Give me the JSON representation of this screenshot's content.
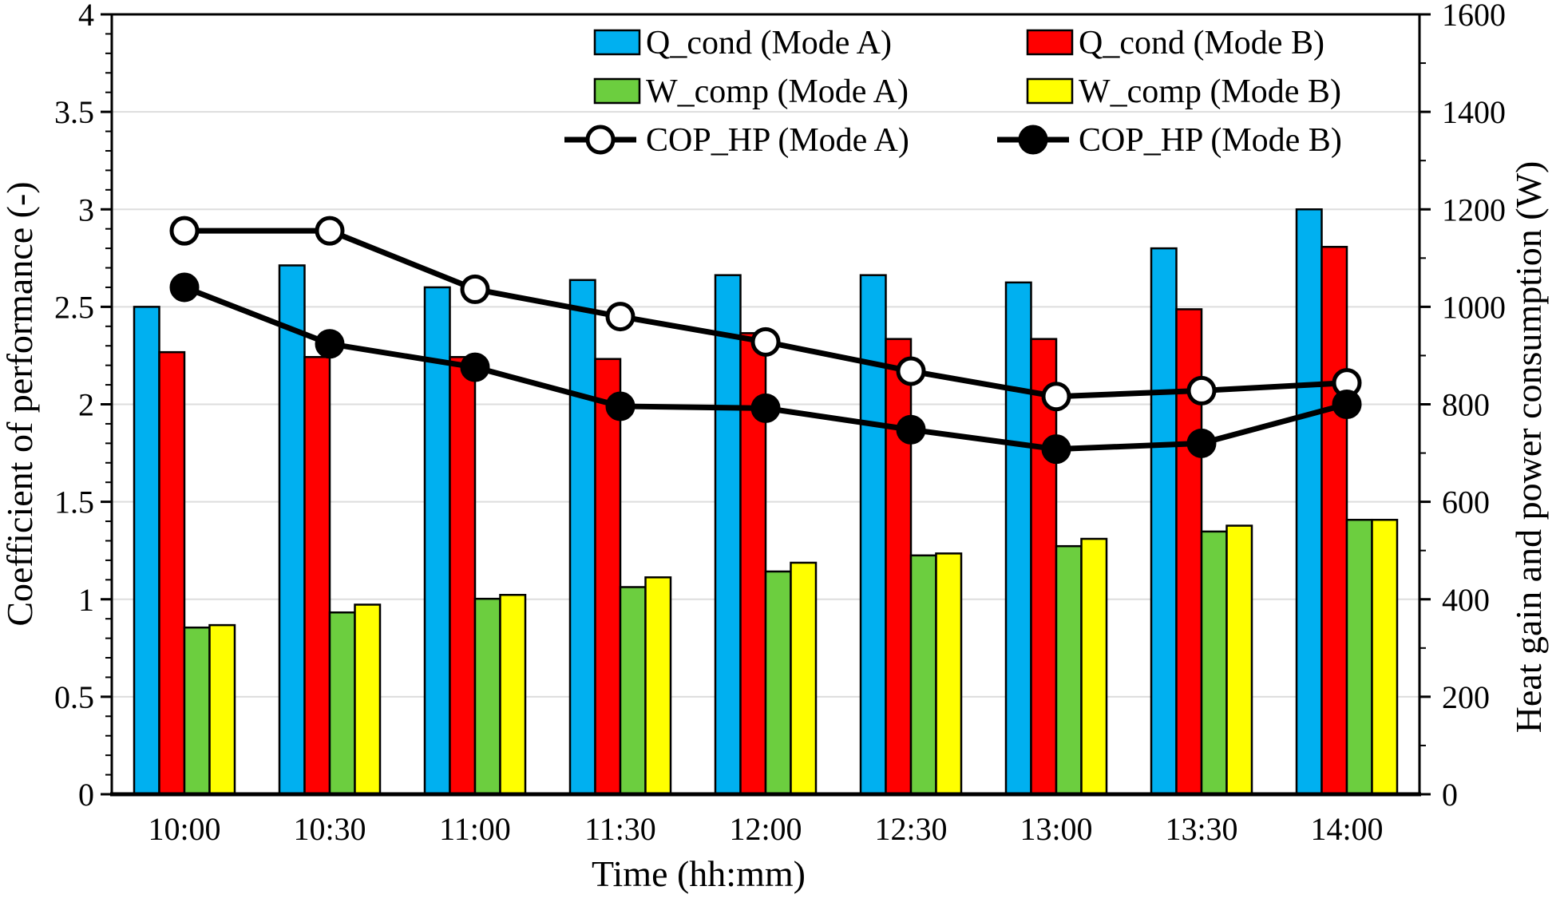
{
  "chart_data": {
    "type": "bar+line combo (dual axis)",
    "categories": [
      "10:00",
      "10:30",
      "11:00",
      "11:30",
      "12:00",
      "12:30",
      "13:00",
      "13:30",
      "14:00"
    ],
    "x_axis_title": "Time (hh:mm)",
    "left_axis": {
      "title": "Coefficient of performance (-)",
      "min": 0,
      "max": 4,
      "major_step": 0.5,
      "minor_step": 0.1,
      "tick_labels": [
        "0",
        "0.5",
        "1",
        "1.5",
        "2",
        "2.5",
        "3",
        "3.5",
        "4"
      ]
    },
    "right_axis": {
      "title": "Heat gain and power consumption (W)",
      "min": 0,
      "max": 1600,
      "major_step": 200,
      "minor_step": 100,
      "tick_labels": [
        "0",
        "200",
        "400",
        "600",
        "800",
        "1000",
        "1200",
        "1400",
        "1600"
      ]
    },
    "grid": {
      "horizontal_major": true,
      "color": "#DDDDDD"
    },
    "bar_series": [
      {
        "name": "Q_cond (Mode A)",
        "key": "qcond-a",
        "color": "#00B0F0",
        "axis": "right",
        "values_w": [
          1000,
          1085,
          1040,
          1055,
          1065,
          1065,
          1050,
          1120,
          1200
        ]
      },
      {
        "name": "Q_cond (Mode B)",
        "key": "qcond-b",
        "color": "#FF0000",
        "axis": "right",
        "values_w": [
          907,
          897,
          897,
          893,
          946,
          934,
          934,
          995,
          1123
        ]
      },
      {
        "name": "W_comp (Mode A)",
        "key": "wcomp-a",
        "color": "#6CCE3F",
        "axis": "right",
        "values_w": [
          342,
          373,
          401,
          425,
          457,
          490,
          509,
          539,
          563
        ]
      },
      {
        "name": "W_comp (Mode B)",
        "key": "wcomp-b",
        "color": "#FFFF00",
        "axis": "right",
        "values_w": [
          347,
          389,
          409,
          445,
          475,
          494,
          524,
          551,
          563
        ]
      }
    ],
    "line_series": [
      {
        "name": "COP_HP (Mode A)",
        "key": "cop-a",
        "line_color": "#000000",
        "marker_fill": "#FFFFFF",
        "values": [
          2.89,
          2.89,
          2.59,
          2.45,
          2.32,
          2.17,
          2.04,
          2.07,
          2.11
        ]
      },
      {
        "name": "COP_HP (Mode B)",
        "key": "cop-b",
        "line_color": "#000000",
        "marker_fill": "#000000",
        "values": [
          2.6,
          2.31,
          2.19,
          1.99,
          1.98,
          1.87,
          1.77,
          1.8,
          2.0
        ]
      }
    ],
    "legend": {
      "position": "top-inside, two columns",
      "entries": [
        {
          "label": "Q_cond (Mode A)",
          "type": "bar",
          "color": "#00B0F0",
          "col": 0,
          "row": 0
        },
        {
          "label": "Q_cond (Mode B)",
          "type": "bar",
          "color": "#FF0000",
          "col": 1,
          "row": 0
        },
        {
          "label": "W_comp (Mode A)",
          "type": "bar",
          "color": "#6CCE3F",
          "col": 0,
          "row": 1
        },
        {
          "label": "W_comp (Mode B)",
          "type": "bar",
          "color": "#FFFF00",
          "col": 1,
          "row": 1
        },
        {
          "label": "COP_HP (Mode A)",
          "type": "line",
          "marker_fill": "#FFFFFF",
          "col": 0,
          "row": 2
        },
        {
          "label": "COP_HP (Mode B)",
          "type": "line",
          "marker_fill": "#000000",
          "col": 1,
          "row": 2
        }
      ]
    }
  }
}
